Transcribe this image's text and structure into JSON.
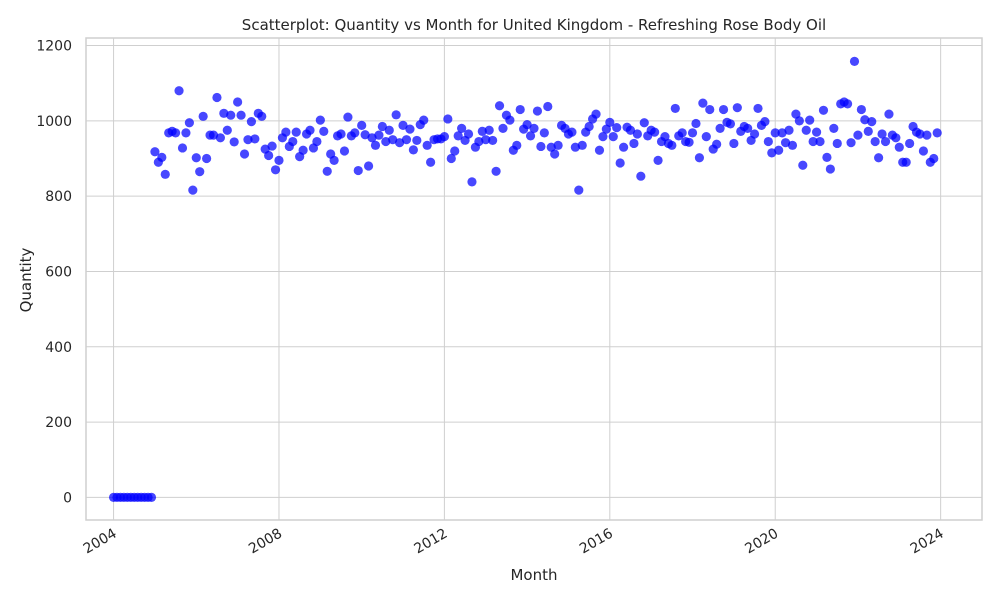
{
  "chart_data": {
    "type": "scatter",
    "title": "Scatterplot: Quantity vs Month for United Kingdom - Refreshing Rose Body Oil",
    "xlabel": "Month",
    "ylabel": "Quantity",
    "xlim": [
      "2003-05",
      "2025-01"
    ],
    "ylim": [
      -60,
      1220
    ],
    "x_ticks": [
      "2004",
      "2008",
      "2012",
      "2016",
      "2020",
      "2024"
    ],
    "y_ticks": [
      "0",
      "200",
      "400",
      "600",
      "800",
      "1000",
      "1200"
    ],
    "grid": true,
    "marker_color": "#0000ff",
    "series": [
      {
        "points": [
          [
            "2004-01",
            0
          ],
          [
            "2004-02",
            0
          ],
          [
            "2004-03",
            0
          ],
          [
            "2004-04",
            0
          ],
          [
            "2004-05",
            0
          ],
          [
            "2004-06",
            0
          ],
          [
            "2004-07",
            0
          ],
          [
            "2004-08",
            0
          ],
          [
            "2004-09",
            0
          ],
          [
            "2004-10",
            0
          ],
          [
            "2004-11",
            0
          ],
          [
            "2004-12",
            0
          ],
          [
            "2005-01",
            918
          ],
          [
            "2005-02",
            890
          ],
          [
            "2005-03",
            903
          ],
          [
            "2005-04",
            858
          ],
          [
            "2005-05",
            968
          ],
          [
            "2005-06",
            972
          ],
          [
            "2005-07",
            968
          ],
          [
            "2005-08",
            1080
          ],
          [
            "2005-09",
            928
          ],
          [
            "2005-10",
            968
          ],
          [
            "2005-11",
            995
          ],
          [
            "2005-12",
            816
          ],
          [
            "2006-01",
            902
          ],
          [
            "2006-02",
            865
          ],
          [
            "2006-03",
            1012
          ],
          [
            "2006-04",
            900
          ],
          [
            "2006-05",
            962
          ],
          [
            "2006-06",
            962
          ],
          [
            "2006-07",
            1062
          ],
          [
            "2006-08",
            955
          ],
          [
            "2006-09",
            1020
          ],
          [
            "2006-10",
            975
          ],
          [
            "2006-11",
            1015
          ],
          [
            "2006-12",
            944
          ],
          [
            "2007-01",
            1050
          ],
          [
            "2007-02",
            1015
          ],
          [
            "2007-03",
            912
          ],
          [
            "2007-04",
            950
          ],
          [
            "2007-05",
            998
          ],
          [
            "2007-06",
            952
          ],
          [
            "2007-07",
            1020
          ],
          [
            "2007-08",
            1012
          ],
          [
            "2007-09",
            925
          ],
          [
            "2007-10",
            908
          ],
          [
            "2007-11",
            933
          ],
          [
            "2007-12",
            870
          ],
          [
            "2008-01",
            895
          ],
          [
            "2008-02",
            955
          ],
          [
            "2008-03",
            970
          ],
          [
            "2008-04",
            932
          ],
          [
            "2008-05",
            945
          ],
          [
            "2008-06",
            970
          ],
          [
            "2008-07",
            905
          ],
          [
            "2008-08",
            922
          ],
          [
            "2008-09",
            965
          ],
          [
            "2008-10",
            975
          ],
          [
            "2008-11",
            928
          ],
          [
            "2008-12",
            945
          ],
          [
            "2009-01",
            1002
          ],
          [
            "2009-02",
            972
          ],
          [
            "2009-03",
            866
          ],
          [
            "2009-04",
            912
          ],
          [
            "2009-05",
            895
          ],
          [
            "2009-06",
            960
          ],
          [
            "2009-07",
            965
          ],
          [
            "2009-08",
            920
          ],
          [
            "2009-09",
            1010
          ],
          [
            "2009-10",
            960
          ],
          [
            "2009-11",
            968
          ],
          [
            "2009-12",
            868
          ],
          [
            "2010-01",
            988
          ],
          [
            "2010-02",
            963
          ],
          [
            "2010-03",
            880
          ],
          [
            "2010-04",
            955
          ],
          [
            "2010-05",
            935
          ],
          [
            "2010-06",
            962
          ],
          [
            "2010-07",
            985
          ],
          [
            "2010-08",
            945
          ],
          [
            "2010-09",
            975
          ],
          [
            "2010-10",
            950
          ],
          [
            "2010-11",
            1016
          ],
          [
            "2010-12",
            942
          ],
          [
            "2011-01",
            988
          ],
          [
            "2011-02",
            950
          ],
          [
            "2011-03",
            978
          ],
          [
            "2011-04",
            923
          ],
          [
            "2011-05",
            948
          ],
          [
            "2011-06",
            990
          ],
          [
            "2011-07",
            1002
          ],
          [
            "2011-08",
            935
          ],
          [
            "2011-09",
            890
          ],
          [
            "2011-10",
            950
          ],
          [
            "2011-11",
            952
          ],
          [
            "2011-12",
            952
          ],
          [
            "2012-01",
            958
          ],
          [
            "2012-02",
            1005
          ],
          [
            "2012-03",
            900
          ],
          [
            "2012-04",
            920
          ],
          [
            "2012-05",
            960
          ],
          [
            "2012-06",
            980
          ],
          [
            "2012-07",
            948
          ],
          [
            "2012-08",
            965
          ],
          [
            "2012-09",
            838
          ],
          [
            "2012-10",
            930
          ],
          [
            "2012-11",
            945
          ],
          [
            "2012-12",
            972
          ],
          [
            "2013-01",
            950
          ],
          [
            "2013-02",
            975
          ],
          [
            "2013-03",
            948
          ],
          [
            "2013-04",
            866
          ],
          [
            "2013-05",
            1040
          ],
          [
            "2013-06",
            980
          ],
          [
            "2013-07",
            1015
          ],
          [
            "2013-08",
            1002
          ],
          [
            "2013-09",
            922
          ],
          [
            "2013-10",
            935
          ],
          [
            "2013-11",
            1030
          ],
          [
            "2013-12",
            978
          ],
          [
            "2014-01",
            990
          ],
          [
            "2014-02",
            960
          ],
          [
            "2014-03",
            980
          ],
          [
            "2014-04",
            1026
          ],
          [
            "2014-05",
            932
          ],
          [
            "2014-06",
            968
          ],
          [
            "2014-07",
            1038
          ],
          [
            "2014-08",
            930
          ],
          [
            "2014-09",
            912
          ],
          [
            "2014-10",
            935
          ],
          [
            "2014-11",
            988
          ],
          [
            "2014-12",
            980
          ],
          [
            "2015-01",
            965
          ],
          [
            "2015-02",
            970
          ],
          [
            "2015-03",
            930
          ],
          [
            "2015-04",
            816
          ],
          [
            "2015-05",
            935
          ],
          [
            "2015-06",
            970
          ],
          [
            "2015-07",
            985
          ],
          [
            "2015-08",
            1005
          ],
          [
            "2015-09",
            1018
          ],
          [
            "2015-10",
            922
          ],
          [
            "2015-11",
            958
          ],
          [
            "2015-12",
            978
          ],
          [
            "2016-01",
            996
          ],
          [
            "2016-02",
            958
          ],
          [
            "2016-03",
            982
          ],
          [
            "2016-04",
            888
          ],
          [
            "2016-05",
            930
          ],
          [
            "2016-06",
            983
          ],
          [
            "2016-07",
            975
          ],
          [
            "2016-08",
            940
          ],
          [
            "2016-09",
            965
          ],
          [
            "2016-10",
            853
          ],
          [
            "2016-11",
            995
          ],
          [
            "2016-12",
            960
          ],
          [
            "2017-01",
            975
          ],
          [
            "2017-02",
            970
          ],
          [
            "2017-03",
            895
          ],
          [
            "2017-04",
            945
          ],
          [
            "2017-05",
            958
          ],
          [
            "2017-06",
            940
          ],
          [
            "2017-07",
            935
          ],
          [
            "2017-08",
            1033
          ],
          [
            "2017-09",
            960
          ],
          [
            "2017-10",
            968
          ],
          [
            "2017-11",
            945
          ],
          [
            "2017-12",
            943
          ],
          [
            "2018-01",
            968
          ],
          [
            "2018-02",
            993
          ],
          [
            "2018-03",
            902
          ],
          [
            "2018-04",
            1047
          ],
          [
            "2018-05",
            958
          ],
          [
            "2018-06",
            1030
          ],
          [
            "2018-07",
            925
          ],
          [
            "2018-08",
            938
          ],
          [
            "2018-09",
            980
          ],
          [
            "2018-10",
            1030
          ],
          [
            "2018-11",
            996
          ],
          [
            "2018-12",
            992
          ],
          [
            "2019-01",
            940
          ],
          [
            "2019-02",
            1035
          ],
          [
            "2019-03",
            972
          ],
          [
            "2019-04",
            985
          ],
          [
            "2019-05",
            980
          ],
          [
            "2019-06",
            948
          ],
          [
            "2019-07",
            965
          ],
          [
            "2019-08",
            1033
          ],
          [
            "2019-09",
            988
          ],
          [
            "2019-10",
            998
          ],
          [
            "2019-11",
            945
          ],
          [
            "2019-12",
            915
          ],
          [
            "2020-01",
            968
          ],
          [
            "2020-02",
            922
          ],
          [
            "2020-03",
            968
          ],
          [
            "2020-04",
            942
          ],
          [
            "2020-05",
            975
          ],
          [
            "2020-06",
            935
          ],
          [
            "2020-07",
            1018
          ],
          [
            "2020-08",
            1000
          ],
          [
            "2020-09",
            882
          ],
          [
            "2020-10",
            975
          ],
          [
            "2020-11",
            1002
          ],
          [
            "2020-12",
            945
          ],
          [
            "2021-01",
            970
          ],
          [
            "2021-02",
            945
          ],
          [
            "2021-03",
            1028
          ],
          [
            "2021-04",
            903
          ],
          [
            "2021-05",
            872
          ],
          [
            "2021-06",
            980
          ],
          [
            "2021-07",
            940
          ],
          [
            "2021-08",
            1045
          ],
          [
            "2021-09",
            1050
          ],
          [
            "2021-10",
            1045
          ],
          [
            "2021-11",
            942
          ],
          [
            "2021-12",
            1158
          ],
          [
            "2022-01",
            962
          ],
          [
            "2022-02",
            1030
          ],
          [
            "2022-03",
            1003
          ],
          [
            "2022-04",
            972
          ],
          [
            "2022-05",
            998
          ],
          [
            "2022-06",
            945
          ],
          [
            "2022-07",
            902
          ],
          [
            "2022-08",
            965
          ],
          [
            "2022-09",
            945
          ],
          [
            "2022-10",
            1018
          ],
          [
            "2022-11",
            962
          ],
          [
            "2022-12",
            955
          ],
          [
            "2023-01",
            930
          ],
          [
            "2023-02",
            890
          ],
          [
            "2023-03",
            890
          ],
          [
            "2023-04",
            940
          ],
          [
            "2023-05",
            985
          ],
          [
            "2023-06",
            970
          ],
          [
            "2023-07",
            965
          ],
          [
            "2023-08",
            920
          ],
          [
            "2023-09",
            962
          ],
          [
            "2023-10",
            890
          ],
          [
            "2023-11",
            900
          ],
          [
            "2023-12",
            968
          ]
        ]
      }
    ]
  }
}
